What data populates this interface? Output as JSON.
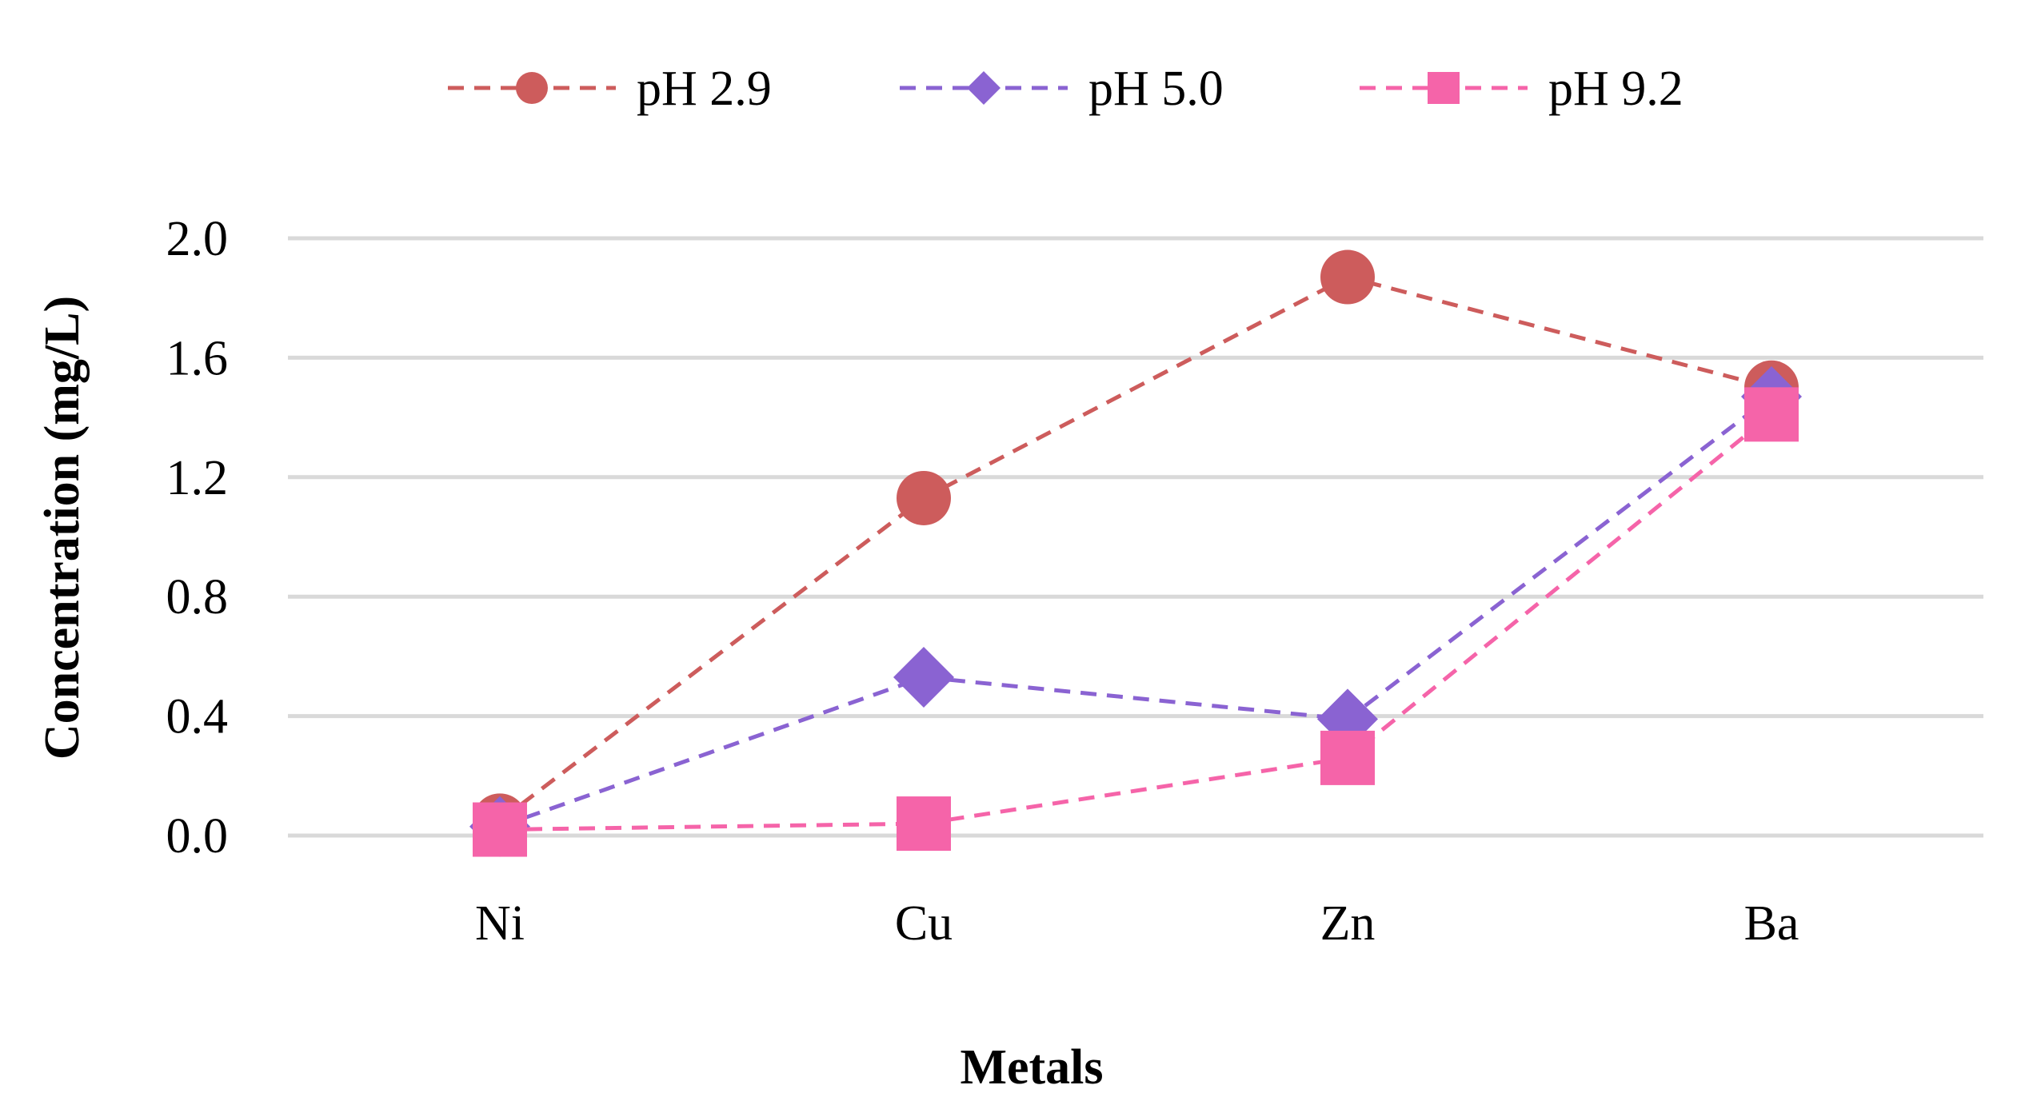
{
  "chart_data": {
    "type": "line",
    "title": "",
    "xlabel": "Metals",
    "ylabel": "Concentration (mg/L)",
    "categories": [
      "Ni",
      "Cu",
      "Zn",
      "Ba"
    ],
    "ylim": [
      0,
      2.0
    ],
    "yticks": [
      0.0,
      0.4,
      0.8,
      1.2,
      1.6,
      2.0
    ],
    "ytick_labels": [
      "0.0",
      "0.4",
      "0.8",
      "1.2",
      "1.6",
      "2.0"
    ],
    "grid": true,
    "legend_position": "top-center",
    "series": [
      {
        "name": "pH 2.9",
        "marker": "circle",
        "line_style": "dashed",
        "color": "#cd5c5c",
        "values": [
          0.05,
          1.13,
          1.87,
          1.5
        ]
      },
      {
        "name": "pH 5.0",
        "marker": "diamond",
        "line_style": "dashed",
        "color": "#8a63d2",
        "values": [
          0.03,
          0.53,
          0.39,
          1.47
        ]
      },
      {
        "name": "pH 9.2",
        "marker": "square",
        "line_style": "dashed",
        "color": "#f564a9",
        "values": [
          0.02,
          0.04,
          0.26,
          1.41
        ]
      }
    ]
  }
}
